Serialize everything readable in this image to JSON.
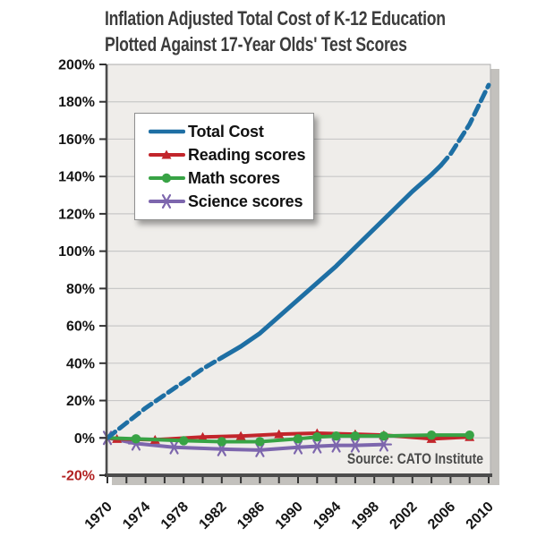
{
  "title": {
    "line1": "Inflation Adjusted Total Cost of K-12 Education",
    "line2": "Plotted Against 17-Year Olds' Test Scores"
  },
  "source": "Source: CATO Institute",
  "legend": {
    "items": [
      {
        "label": "Total Cost",
        "color": "#1e6fa4",
        "marker": "line"
      },
      {
        "label": "Reading scores",
        "color": "#c2252b",
        "marker": "triangle"
      },
      {
        "label": "Math scores",
        "color": "#38a345",
        "marker": "circle"
      },
      {
        "label": "Science scores",
        "color": "#7d66ad",
        "marker": "asterisk"
      }
    ]
  },
  "chart_data": {
    "type": "line",
    "title": "Inflation Adjusted Total Cost of K-12 Education Plotted Against 17-Year Olds' Test Scores",
    "xlabel": "",
    "ylabel": "",
    "xlim": [
      1970,
      2010
    ],
    "ylim": [
      -20,
      200
    ],
    "y_ticks": [
      200,
      180,
      160,
      140,
      120,
      100,
      80,
      60,
      40,
      20,
      0,
      -20
    ],
    "y_tick_suffix": "%",
    "negative_tick_color": "#b22222",
    "x_tick_labels": [
      1970,
      1974,
      1978,
      1982,
      1986,
      1990,
      1994,
      1998,
      2002,
      2006,
      2010
    ],
    "x_minor_tick_step": 2,
    "grid": true,
    "legend_position": "upper-left",
    "series": [
      {
        "name": "Total Cost",
        "color": "#1e6fa4",
        "width": 5,
        "marker": "none",
        "segments": [
          {
            "dashed": true,
            "points": [
              [
                1970,
                0
              ],
              [
                1972,
                8
              ],
              [
                1974,
                16
              ],
              [
                1976,
                23
              ],
              [
                1978,
                30
              ],
              [
                1980,
                37
              ],
              [
                1982,
                43
              ]
            ]
          },
          {
            "dashed": false,
            "points": [
              [
                1982,
                43
              ],
              [
                1984,
                49
              ],
              [
                1986,
                56
              ],
              [
                1988,
                65
              ],
              [
                1990,
                74
              ],
              [
                1992,
                83
              ],
              [
                1994,
                92
              ],
              [
                1996,
                102
              ],
              [
                1998,
                112
              ],
              [
                2000,
                122
              ],
              [
                2002,
                132
              ],
              [
                2004,
                141
              ],
              [
                2005,
                146
              ]
            ]
          },
          {
            "dashed": true,
            "points": [
              [
                2005,
                146
              ],
              [
                2006,
                152
              ],
              [
                2008,
                168
              ],
              [
                2010,
                189
              ]
            ]
          }
        ]
      },
      {
        "name": "Reading scores",
        "color": "#c2252b",
        "width": 4,
        "marker": "triangle",
        "points": [
          [
            1970,
            0
          ],
          [
            1971,
            -0.5
          ],
          [
            1975,
            -1
          ],
          [
            1980,
            0.5
          ],
          [
            1984,
            1
          ],
          [
            1988,
            2
          ],
          [
            1992,
            2.5
          ],
          [
            1996,
            2
          ],
          [
            1999,
            1.5
          ],
          [
            2004,
            -0.5
          ],
          [
            2008,
            0.5
          ]
        ]
      },
      {
        "name": "Math scores",
        "color": "#38a345",
        "width": 4,
        "marker": "circle",
        "points": [
          [
            1970,
            0
          ],
          [
            1973,
            -0.5
          ],
          [
            1978,
            -1.5
          ],
          [
            1982,
            -2
          ],
          [
            1986,
            -2
          ],
          [
            1990,
            -0.5
          ],
          [
            1992,
            0.5
          ],
          [
            1994,
            1
          ],
          [
            1996,
            1
          ],
          [
            1999,
            1
          ],
          [
            2004,
            1.5
          ],
          [
            2008,
            1.5
          ]
        ]
      },
      {
        "name": "Science scores",
        "color": "#7d66ad",
        "width": 4,
        "marker": "asterisk",
        "points": [
          [
            1970,
            0
          ],
          [
            1973,
            -3
          ],
          [
            1977,
            -5
          ],
          [
            1982,
            -6
          ],
          [
            1986,
            -6.5
          ],
          [
            1990,
            -5
          ],
          [
            1992,
            -4.5
          ],
          [
            1994,
            -4
          ],
          [
            1996,
            -4
          ],
          [
            1999,
            -3.5
          ]
        ]
      }
    ]
  }
}
